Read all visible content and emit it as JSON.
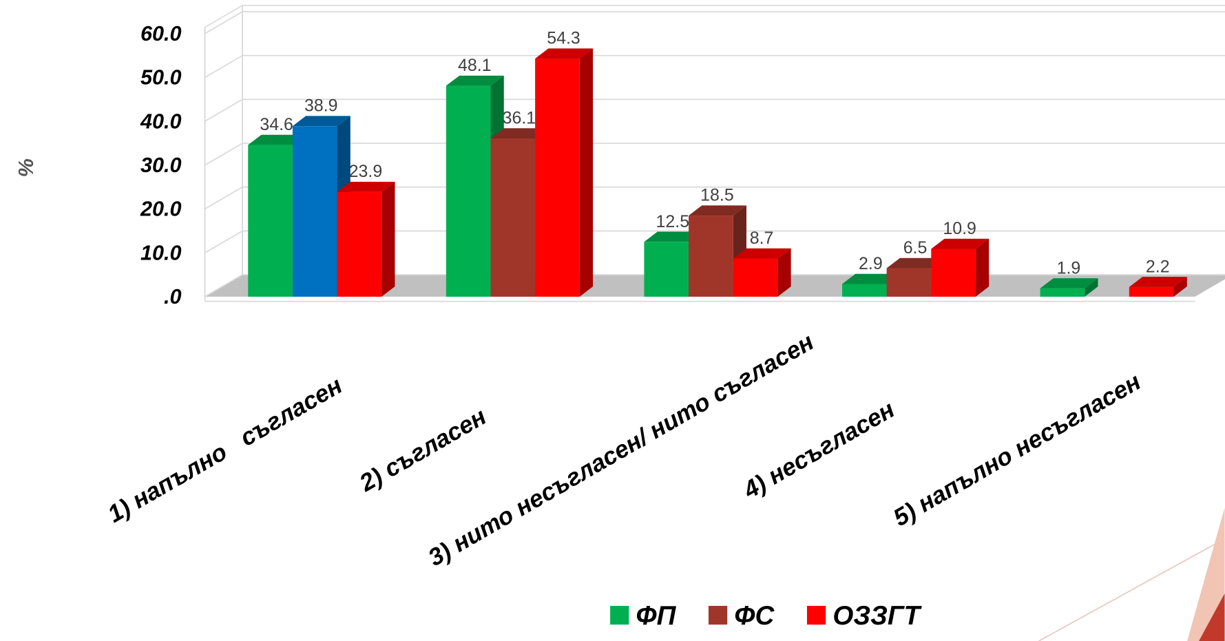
{
  "chart_data": {
    "type": "bar3d",
    "y_label": "%",
    "categories": [
      "1) напълно   съгласен",
      "2) съгласен",
      "3) нито несъгласен/ нито съгласен",
      "4) несъгласен",
      "5) напълно несъгласен"
    ],
    "series": [
      {
        "name": "ФП",
        "color": "#00b050",
        "values": [
          34.6,
          48.1,
          12.5,
          2.9,
          1.9
        ]
      },
      {
        "name": "ФС",
        "color": "#a0362a",
        "colors": [
          "#0070c0",
          "#a0362a",
          "#a0362a",
          "#a0362a",
          null
        ],
        "values": [
          38.9,
          36.1,
          18.5,
          6.5,
          null
        ]
      },
      {
        "name": "ОЗЗГТ",
        "color": "#ff0000",
        "values": [
          23.9,
          54.3,
          8.7,
          10.9,
          2.2
        ]
      }
    ],
    "ylim": [
      0,
      60
    ],
    "yticks": [
      {
        "value": 0,
        "label": ".0"
      },
      {
        "value": 10,
        "label": "10.0"
      },
      {
        "value": 20,
        "label": "20.0"
      },
      {
        "value": 30,
        "label": "30.0"
      },
      {
        "value": 40,
        "label": "40.0"
      },
      {
        "value": 50,
        "label": "50.0"
      },
      {
        "value": 60,
        "label": "60.0"
      }
    ],
    "grid": true,
    "legend": "bottom"
  }
}
